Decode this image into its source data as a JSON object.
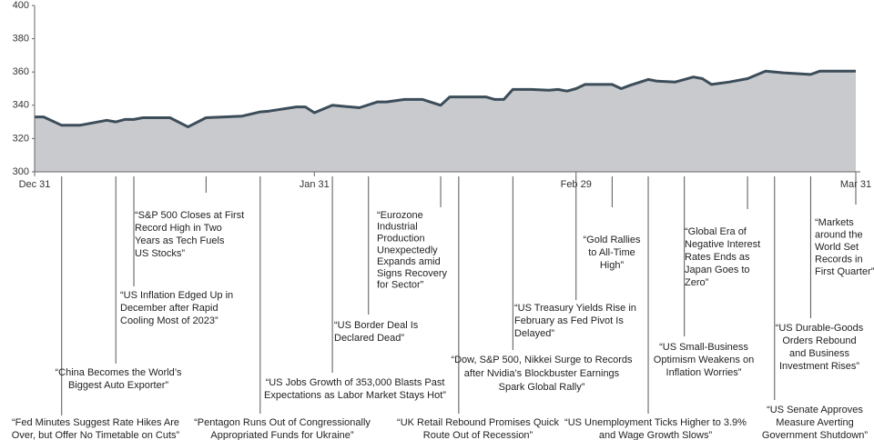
{
  "chart_data": {
    "type": "area",
    "color": "#c9cacd",
    "line_color": "#3c4d5a",
    "x": [
      0,
      1,
      3,
      5,
      8,
      9,
      10,
      11,
      12,
      15,
      17,
      19,
      23,
      25,
      26,
      29,
      30,
      31,
      33,
      36,
      38,
      39,
      41,
      43,
      45,
      46,
      50,
      51,
      52,
      53,
      55,
      57,
      58,
      59,
      60,
      61,
      64,
      65,
      66,
      68,
      69,
      71,
      73,
      74,
      75,
      77,
      79,
      81,
      83,
      86,
      87,
      91
    ],
    "values": [
      333,
      333,
      328,
      328,
      331,
      330,
      331.5,
      331.5,
      332.5,
      332.5,
      327,
      332.5,
      333.5,
      336,
      336.5,
      339,
      339,
      335.5,
      340,
      338.5,
      342,
      342,
      343.5,
      343.5,
      340,
      345,
      345,
      343.5,
      343.5,
      349.5,
      349.5,
      349,
      349.5,
      348.5,
      350,
      352.5,
      352.5,
      350,
      352,
      355.5,
      354.5,
      354,
      357,
      356,
      352.5,
      354,
      356,
      360.5,
      359.5,
      358.5,
      360.5,
      360.5
    ],
    "xlim": [
      0,
      91
    ],
    "xticks": [
      {
        "value": 0,
        "label": "Dec 31"
      },
      {
        "value": 31,
        "label": "Jan 31"
      },
      {
        "value": 60,
        "label": "Feb 29"
      },
      {
        "value": 91,
        "label": "Mar 31"
      }
    ],
    "ylim": [
      300,
      400
    ],
    "yticks": [
      300,
      320,
      340,
      360,
      380,
      400
    ],
    "annotations": [
      {
        "x": 3,
        "lines": [
          "“Fed Minutes Suggest Rate Hikes Are",
          "Over, but Offer No Timetable on Cuts”"
        ]
      },
      {
        "x": 9,
        "lines": [
          "“China Becomes the World’s",
          "Biggest Auto Exporter”"
        ]
      },
      {
        "x": 11,
        "lines": [
          "“US Inflation Edged Up in",
          "December after Rapid",
          "Cooling Most of 2023”"
        ]
      },
      {
        "x": 19,
        "lines": [
          "“S&P 500 Closes at First",
          "Record High in Two",
          "Years as Tech Fuels",
          "US Stocks”"
        ]
      },
      {
        "x": 25,
        "lines": [
          "“Pentagon Runs Out of Congressionally",
          "Appropriated Funds for Ukraine”"
        ]
      },
      {
        "x": 33,
        "lines": [
          "“US Jobs Growth of 353,000 Blasts Past",
          "Expectations as Labor Market Stays Hot”"
        ]
      },
      {
        "x": 37,
        "lines": [
          "“US Border Deal Is",
          "Declared Dead”"
        ]
      },
      {
        "x": 45,
        "lines": [
          "“Eurozone",
          "Industrial",
          "Production",
          "Unexpectedly",
          "Expands amid",
          "Signs Recovery",
          "for Sector”"
        ]
      },
      {
        "x": 47,
        "lines": [
          "“UK Retail Rebound Promises Quick",
          "Route Out of Recession”"
        ]
      },
      {
        "x": 53,
        "lines": [
          "“Dow, S&P 500, Nikkei Surge to Records",
          "after Nvidia’s Blockbuster Earnings",
          "Spark Global Rally”"
        ]
      },
      {
        "x": 60,
        "lines": [
          "“US Treasury Yields Rise in",
          "February as Fed Pivot Is",
          "Delayed”"
        ]
      },
      {
        "x": 64,
        "lines": [
          "“Gold Rallies",
          "to All-Time",
          "High”"
        ]
      },
      {
        "x": 68,
        "lines": [
          "“US Unemployment Ticks Higher to 3.9%",
          "and Wage Growth Slows”"
        ]
      },
      {
        "x": 72,
        "lines": [
          "“US Small-Business",
          "Optimism Weakens on",
          "Inflation Worries”"
        ]
      },
      {
        "x": 79,
        "lines": [
          "“Global Era of",
          "Negative Interest",
          "Rates Ends as",
          "Japan Goes to",
          "Zero”"
        ]
      },
      {
        "x": 82,
        "lines": [
          "“US Senate Approves",
          "Measure Averting",
          "Government Shutdown”"
        ]
      },
      {
        "x": 86,
        "lines": [
          "“US Durable-Goods",
          "Orders Rebound",
          "and Business",
          "Investment Rises”"
        ]
      },
      {
        "x": 91,
        "lines": [
          "“Markets",
          "around the",
          "World Set",
          "Records in",
          "First Quarter”"
        ]
      }
    ]
  }
}
